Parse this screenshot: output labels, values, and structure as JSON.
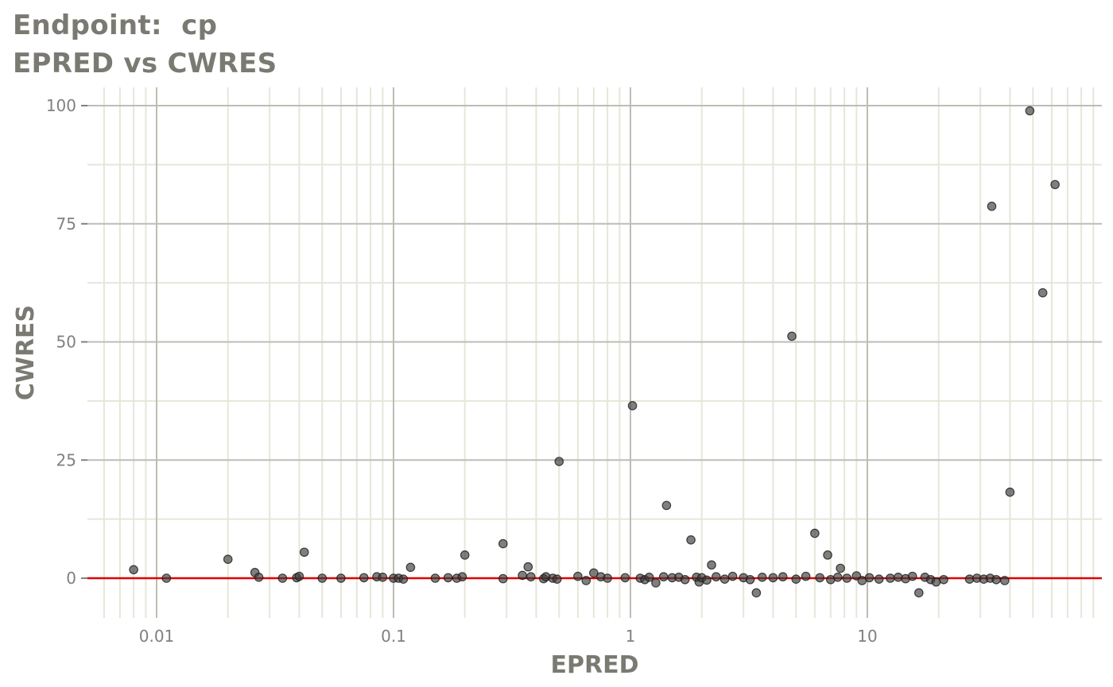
{
  "title_line1": "Endpoint:  cp",
  "title_line2": "EPRED vs CWRES",
  "chart_data": {
    "type": "scatter",
    "title": "Endpoint:  cp",
    "subtitle": "EPRED vs CWRES",
    "xlabel": "EPRED",
    "ylabel": "CWRES",
    "x_scale": "log10",
    "xlim": [
      0.0055,
      80
    ],
    "ylim": [
      -8,
      103
    ],
    "x_ticks": [
      0.01,
      0.1,
      1,
      10
    ],
    "x_tick_labels": [
      "0.01",
      "0.1",
      "1",
      "10"
    ],
    "y_ticks": [
      0,
      25,
      50,
      75,
      100
    ],
    "y_tick_labels": [
      "0",
      "25",
      "50",
      "75",
      "100"
    ],
    "grid": true,
    "reference_line": {
      "y": 0,
      "color": "#e00000"
    },
    "point_color": "#3a3a3a",
    "series": [
      {
        "points": [
          [
            0.008,
            1.8
          ],
          [
            0.011,
            0.0
          ],
          [
            0.02,
            4.0
          ],
          [
            0.026,
            1.2
          ],
          [
            0.027,
            0.2
          ],
          [
            0.034,
            0.0
          ],
          [
            0.039,
            0.1
          ],
          [
            0.04,
            0.4
          ],
          [
            0.042,
            5.5
          ],
          [
            0.05,
            0.0
          ],
          [
            0.06,
            0.0
          ],
          [
            0.075,
            0.1
          ],
          [
            0.085,
            0.3
          ],
          [
            0.09,
            0.2
          ],
          [
            0.1,
            0.0
          ],
          [
            0.105,
            0.0
          ],
          [
            0.11,
            -0.2
          ],
          [
            0.118,
            2.3
          ],
          [
            0.15,
            0.0
          ],
          [
            0.17,
            0.1
          ],
          [
            0.185,
            0.0
          ],
          [
            0.195,
            0.3
          ],
          [
            0.2,
            4.9
          ],
          [
            0.29,
            7.3
          ],
          [
            0.29,
            -0.1
          ],
          [
            0.35,
            0.6
          ],
          [
            0.37,
            2.4
          ],
          [
            0.38,
            0.3
          ],
          [
            0.43,
            -0.1
          ],
          [
            0.44,
            0.3
          ],
          [
            0.47,
            0.0
          ],
          [
            0.49,
            -0.2
          ],
          [
            0.5,
            24.7
          ],
          [
            0.6,
            0.4
          ],
          [
            0.65,
            -0.5
          ],
          [
            0.7,
            1.1
          ],
          [
            0.75,
            0.3
          ],
          [
            0.8,
            0.0
          ],
          [
            0.95,
            0.1
          ],
          [
            1.02,
            36.5
          ],
          [
            1.1,
            0.0
          ],
          [
            1.15,
            -0.3
          ],
          [
            1.2,
            0.2
          ],
          [
            1.28,
            -1.0
          ],
          [
            1.38,
            0.3
          ],
          [
            1.42,
            15.4
          ],
          [
            1.5,
            0.1
          ],
          [
            1.6,
            0.2
          ],
          [
            1.7,
            -0.3
          ],
          [
            1.8,
            8.1
          ],
          [
            1.9,
            0.2
          ],
          [
            1.95,
            -0.8
          ],
          [
            2.0,
            0.1
          ],
          [
            2.1,
            -0.4
          ],
          [
            2.2,
            2.8
          ],
          [
            2.3,
            0.3
          ],
          [
            2.5,
            -0.2
          ],
          [
            2.7,
            0.4
          ],
          [
            3.0,
            0.1
          ],
          [
            3.2,
            -0.3
          ],
          [
            3.4,
            -3.1
          ],
          [
            3.6,
            0.2
          ],
          [
            4.0,
            0.1
          ],
          [
            4.4,
            0.3
          ],
          [
            4.8,
            51.2
          ],
          [
            5.0,
            -0.2
          ],
          [
            5.5,
            0.4
          ],
          [
            6.0,
            9.5
          ],
          [
            6.3,
            0.1
          ],
          [
            6.8,
            4.9
          ],
          [
            7.0,
            -0.3
          ],
          [
            7.5,
            0.2
          ],
          [
            7.7,
            2.1
          ],
          [
            8.2,
            0.0
          ],
          [
            9.0,
            0.5
          ],
          [
            9.5,
            -0.5
          ],
          [
            10.2,
            0.1
          ],
          [
            11.2,
            -0.2
          ],
          [
            12.5,
            0.0
          ],
          [
            13.5,
            0.2
          ],
          [
            14.5,
            -0.1
          ],
          [
            15.5,
            0.4
          ],
          [
            16.5,
            -3.1
          ],
          [
            17.5,
            0.2
          ],
          [
            18.5,
            -0.3
          ],
          [
            19.5,
            -0.8
          ],
          [
            21.0,
            -0.3
          ],
          [
            27.0,
            -0.2
          ],
          [
            29.0,
            0.0
          ],
          [
            31.0,
            -0.2
          ],
          [
            33.0,
            0.0
          ],
          [
            33.5,
            78.7
          ],
          [
            35.0,
            -0.3
          ],
          [
            38.0,
            -0.5
          ],
          [
            40.0,
            18.2
          ],
          [
            48.5,
            98.9
          ],
          [
            55.0,
            60.4
          ],
          [
            62.0,
            83.3
          ]
        ]
      }
    ]
  }
}
